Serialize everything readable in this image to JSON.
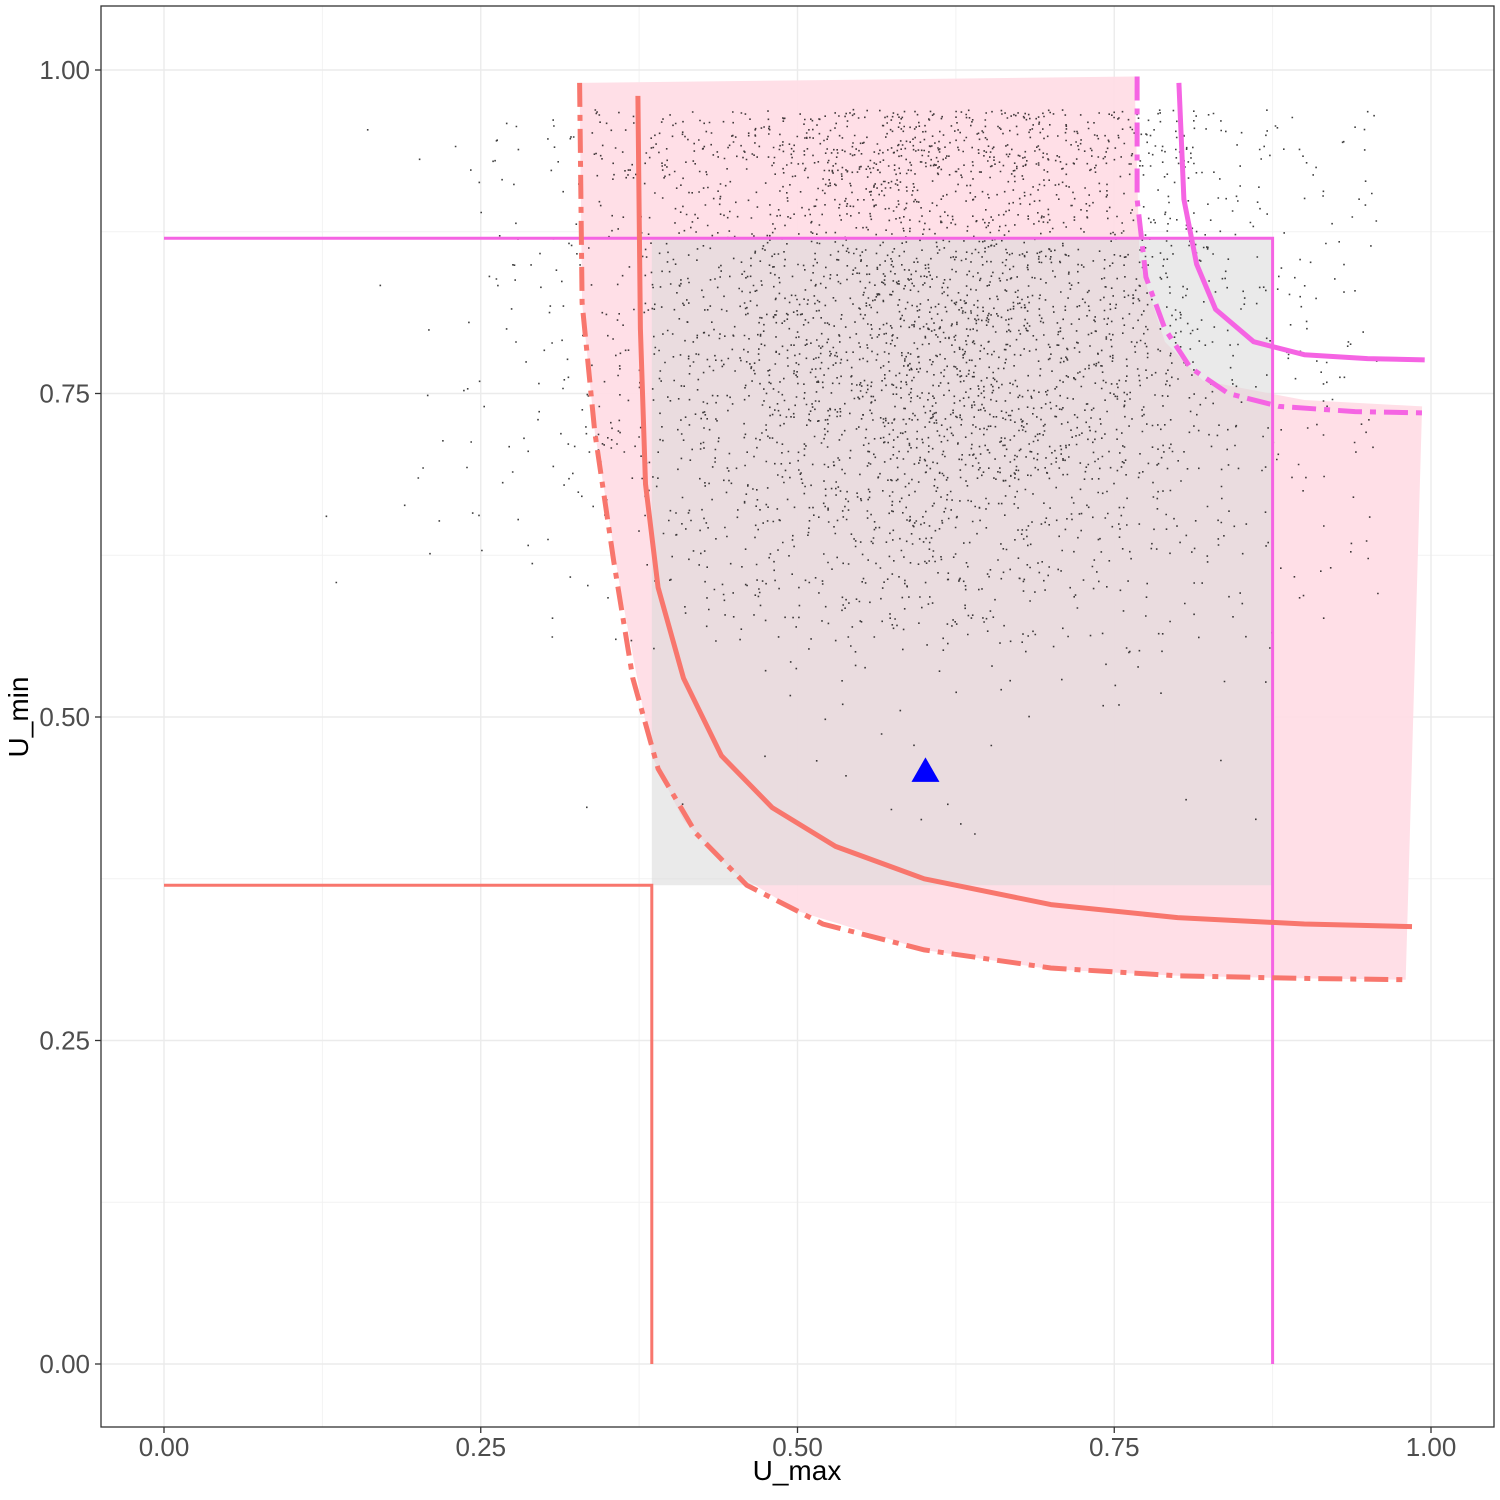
{
  "chart_data": {
    "type": "scatter",
    "xlabel": "U_max",
    "ylabel": "U_min",
    "xlim": [
      -0.05,
      1.05
    ],
    "ylim": [
      -0.05,
      1.05
    ],
    "x_ticks": [
      "0.00",
      "0.25",
      "0.50",
      "0.75",
      "1.00"
    ],
    "y_ticks": [
      "0.00",
      "0.25",
      "0.50",
      "0.75",
      "1.00"
    ],
    "grid": true,
    "colors": {
      "red": "#f8766d",
      "magenta": "#f564e3",
      "pink_band": "#ffdde6",
      "gray_rect": "#d9d9d9",
      "marker": "#0000ff",
      "points": "#000000"
    },
    "scatter": {
      "n_points": 9000,
      "x_center": 0.6,
      "y_center": 0.8,
      "x_sd": 0.14,
      "y_sd": 0.13,
      "density": "dense in upper band, sparse below ~0.45"
    },
    "gray_rect": {
      "x": [
        0.385,
        0.875
      ],
      "y": [
        0.37,
        0.87
      ]
    },
    "red_reference": {
      "x": 0.385,
      "y": 0.37
    },
    "magenta_reference": {
      "x": 0.875,
      "y": 0.87
    },
    "red_pink_band": [
      [
        0.328,
        0.99
      ],
      [
        0.33,
        0.82
      ],
      [
        0.34,
        0.72
      ],
      [
        0.36,
        0.6
      ],
      [
        0.385,
        0.47
      ],
      [
        0.41,
        0.42
      ],
      [
        0.45,
        0.38
      ],
      [
        0.5,
        0.35
      ],
      [
        0.6,
        0.32
      ],
      [
        0.7,
        0.305
      ],
      [
        0.8,
        0.3
      ],
      [
        0.9,
        0.298
      ],
      [
        0.98,
        0.297
      ],
      [
        0.993,
        0.74
      ],
      [
        0.9,
        0.745
      ],
      [
        0.82,
        0.76
      ],
      [
        0.79,
        0.79
      ],
      [
        0.77,
        0.85
      ],
      [
        0.766,
        0.995
      ]
    ],
    "red_solid_curve": [
      [
        0.374,
        0.98
      ],
      [
        0.376,
        0.8
      ],
      [
        0.38,
        0.68
      ],
      [
        0.39,
        0.6
      ],
      [
        0.41,
        0.53
      ],
      [
        0.44,
        0.47
      ],
      [
        0.48,
        0.43
      ],
      [
        0.53,
        0.4
      ],
      [
        0.6,
        0.375
      ],
      [
        0.7,
        0.355
      ],
      [
        0.8,
        0.345
      ],
      [
        0.9,
        0.34
      ],
      [
        0.985,
        0.338
      ]
    ],
    "red_dashed_curve": [
      [
        0.328,
        0.99
      ],
      [
        0.33,
        0.82
      ],
      [
        0.34,
        0.72
      ],
      [
        0.355,
        0.62
      ],
      [
        0.37,
        0.53
      ],
      [
        0.39,
        0.46
      ],
      [
        0.42,
        0.41
      ],
      [
        0.46,
        0.37
      ],
      [
        0.52,
        0.34
      ],
      [
        0.6,
        0.32
      ],
      [
        0.7,
        0.306
      ],
      [
        0.8,
        0.3
      ],
      [
        0.9,
        0.298
      ],
      [
        0.98,
        0.297
      ]
    ],
    "magenta_solid_curve": [
      [
        0.801,
        0.99
      ],
      [
        0.805,
        0.9
      ],
      [
        0.815,
        0.85
      ],
      [
        0.83,
        0.815
      ],
      [
        0.86,
        0.79
      ],
      [
        0.9,
        0.78
      ],
      [
        0.95,
        0.777
      ],
      [
        0.995,
        0.776
      ]
    ],
    "magenta_dashed_curve": [
      [
        0.768,
        0.995
      ],
      [
        0.768,
        0.9
      ],
      [
        0.775,
        0.84
      ],
      [
        0.79,
        0.8
      ],
      [
        0.81,
        0.77
      ],
      [
        0.84,
        0.75
      ],
      [
        0.88,
        0.74
      ],
      [
        0.94,
        0.736
      ],
      [
        0.993,
        0.735
      ]
    ],
    "marker": {
      "shape": "triangle",
      "x": 0.601,
      "y": 0.458
    }
  }
}
